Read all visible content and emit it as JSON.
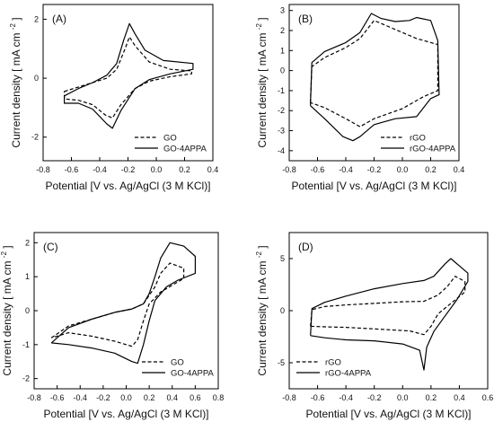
{
  "chart_data": [
    {
      "type": "line",
      "panel_label": "(A)",
      "xlabel": "Potential [V vs. Ag/AgCl (3 M KCl)]",
      "ylabel": "Current density [ mA cm",
      "ylabel_sup": "-2",
      "ylabel_end": "]",
      "xlim": [
        -0.8,
        0.4
      ],
      "ylim": [
        -2.8,
        2.5
      ],
      "xticks": [
        -0.8,
        -0.6,
        -0.4,
        -0.2,
        0.0,
        0.2,
        0.4
      ],
      "xtick_labels": [
        "-0.8",
        "-0.6",
        "-0.4",
        "-0.2",
        "0.0",
        "0.2",
        "0.4"
      ],
      "yticks": [
        -2,
        0,
        2
      ],
      "ytick_labels": [
        "-2",
        "0",
        "2"
      ],
      "legend_position": "bottom-right",
      "series": [
        {
          "name": "GO",
          "style": "dashed",
          "points": [
            [
              -0.65,
              -0.45
            ],
            [
              -0.55,
              -0.3
            ],
            [
              -0.45,
              -0.15
            ],
            [
              -0.35,
              0.0
            ],
            [
              -0.28,
              0.3
            ],
            [
              -0.22,
              1.0
            ],
            [
              -0.19,
              1.4
            ],
            [
              -0.15,
              1.1
            ],
            [
              -0.05,
              0.55
            ],
            [
              0.1,
              0.3
            ],
            [
              0.25,
              0.25
            ],
            [
              0.25,
              0.15
            ],
            [
              0.1,
              0.05
            ],
            [
              -0.05,
              -0.1
            ],
            [
              -0.15,
              -0.35
            ],
            [
              -0.25,
              -0.9
            ],
            [
              -0.31,
              -1.35
            ],
            [
              -0.36,
              -1.25
            ],
            [
              -0.45,
              -0.9
            ],
            [
              -0.55,
              -0.75
            ],
            [
              -0.65,
              -0.7
            ],
            [
              -0.65,
              -0.45
            ]
          ]
        },
        {
          "name": "GO-4APPA",
          "style": "solid",
          "points": [
            [
              -0.65,
              -0.6
            ],
            [
              -0.55,
              -0.35
            ],
            [
              -0.45,
              -0.15
            ],
            [
              -0.35,
              0.1
            ],
            [
              -0.28,
              0.5
            ],
            [
              -0.23,
              1.3
            ],
            [
              -0.19,
              1.85
            ],
            [
              -0.15,
              1.5
            ],
            [
              -0.08,
              0.95
            ],
            [
              0.05,
              0.6
            ],
            [
              0.26,
              0.5
            ],
            [
              0.26,
              0.3
            ],
            [
              0.1,
              0.15
            ],
            [
              -0.05,
              -0.05
            ],
            [
              -0.15,
              -0.35
            ],
            [
              -0.25,
              -1.1
            ],
            [
              -0.31,
              -1.7
            ],
            [
              -0.35,
              -1.55
            ],
            [
              -0.45,
              -1.05
            ],
            [
              -0.55,
              -0.85
            ],
            [
              -0.65,
              -0.85
            ],
            [
              -0.65,
              -0.6
            ]
          ]
        }
      ]
    },
    {
      "type": "line",
      "panel_label": "(B)",
      "xlabel": "Potential [V vs. Ag/AgCl (3 M KCl)]",
      "ylabel": "Current density [ mA cm",
      "ylabel_sup": "-2",
      "ylabel_end": "]",
      "xlim": [
        -0.8,
        0.4
      ],
      "ylim": [
        -4.5,
        3.3
      ],
      "xticks": [
        -0.8,
        -0.6,
        -0.4,
        -0.2,
        0.0,
        0.2,
        0.4
      ],
      "xtick_labels": [
        "-0.8",
        "-0.6",
        "-0.4",
        "-0.2",
        "0.0",
        "0.2",
        "0.4"
      ],
      "yticks": [
        -4,
        -3,
        -2,
        -1,
        0,
        1,
        2,
        3
      ],
      "ytick_labels": [
        "-4",
        "-3",
        "-2",
        "-1",
        "0",
        "1",
        "2",
        "3"
      ],
      "legend_position": "bottom-right",
      "series": [
        {
          "name": "rGO",
          "style": "dashed",
          "points": [
            [
              -0.65,
              -1.6
            ],
            [
              -0.64,
              0.2
            ],
            [
              -0.55,
              0.65
            ],
            [
              -0.4,
              1.15
            ],
            [
              -0.3,
              1.6
            ],
            [
              -0.2,
              2.5
            ],
            [
              -0.1,
              2.2
            ],
            [
              0.0,
              1.9
            ],
            [
              0.1,
              1.6
            ],
            [
              0.25,
              1.3
            ],
            [
              0.25,
              -1.0
            ],
            [
              0.15,
              -1.3
            ],
            [
              0.0,
              -1.9
            ],
            [
              -0.2,
              -2.4
            ],
            [
              -0.3,
              -2.8
            ],
            [
              -0.4,
              -2.4
            ],
            [
              -0.55,
              -1.85
            ],
            [
              -0.65,
              -1.6
            ]
          ]
        },
        {
          "name": "rGO-4APPA",
          "style": "solid",
          "points": [
            [
              -0.65,
              -1.75
            ],
            [
              -0.64,
              0.4
            ],
            [
              -0.55,
              0.95
            ],
            [
              -0.4,
              1.4
            ],
            [
              -0.3,
              1.9
            ],
            [
              -0.22,
              2.85
            ],
            [
              -0.15,
              2.6
            ],
            [
              -0.05,
              2.45
            ],
            [
              0.05,
              2.5
            ],
            [
              0.1,
              2.65
            ],
            [
              0.2,
              2.5
            ],
            [
              0.25,
              1.5
            ],
            [
              0.26,
              -1.2
            ],
            [
              0.2,
              -1.4
            ],
            [
              0.1,
              -2.3
            ],
            [
              -0.05,
              -2.4
            ],
            [
              -0.2,
              -2.7
            ],
            [
              -0.3,
              -3.3
            ],
            [
              -0.35,
              -3.5
            ],
            [
              -0.42,
              -3.3
            ],
            [
              -0.55,
              -2.4
            ],
            [
              -0.65,
              -1.75
            ]
          ]
        }
      ]
    },
    {
      "type": "line",
      "panel_label": "(C)",
      "xlabel": "Potential [V vs. Ag/AgCl (3 M KCl)]",
      "ylabel": "Current density [ mA cm",
      "ylabel_sup": "-2",
      "ylabel_end": "]",
      "xlim": [
        -0.8,
        0.8
      ],
      "ylim": [
        -2.3,
        2.3
      ],
      "xticks": [
        -0.8,
        -0.6,
        -0.4,
        -0.2,
        0.0,
        0.2,
        0.4,
        0.6,
        0.8
      ],
      "xtick_labels": [
        "-0.8",
        "-0.6",
        "-0.4",
        "-0.2",
        "0.0",
        "0.2",
        "0.4",
        "0.6",
        "0.8"
      ],
      "yticks": [
        -2,
        -1,
        0,
        1,
        2
      ],
      "ytick_labels": [
        "-2",
        "-1",
        "0",
        "1",
        "2"
      ],
      "legend_position": "bottom-right",
      "series": [
        {
          "name": "GO",
          "style": "dashed",
          "points": [
            [
              -0.65,
              -0.8
            ],
            [
              -0.5,
              -0.45
            ],
            [
              -0.3,
              -0.25
            ],
            [
              -0.1,
              -0.05
            ],
            [
              0.05,
              0.05
            ],
            [
              0.15,
              0.2
            ],
            [
              0.25,
              0.7
            ],
            [
              0.3,
              1.1
            ],
            [
              0.38,
              1.4
            ],
            [
              0.5,
              1.25
            ],
            [
              0.5,
              0.95
            ],
            [
              0.4,
              0.75
            ],
            [
              0.3,
              0.55
            ],
            [
              0.2,
              0.2
            ],
            [
              0.15,
              -0.3
            ],
            [
              0.1,
              -0.85
            ],
            [
              0.05,
              -1.05
            ],
            [
              -0.1,
              -0.9
            ],
            [
              -0.3,
              -0.75
            ],
            [
              -0.5,
              -0.65
            ],
            [
              -0.65,
              -0.8
            ]
          ]
        },
        {
          "name": "GO-4APPA",
          "style": "solid",
          "points": [
            [
              -0.65,
              -0.95
            ],
            [
              -0.5,
              -0.5
            ],
            [
              -0.3,
              -0.25
            ],
            [
              -0.1,
              -0.05
            ],
            [
              0.05,
              0.05
            ],
            [
              0.15,
              0.2
            ],
            [
              0.2,
              0.5
            ],
            [
              0.25,
              1.0
            ],
            [
              0.3,
              1.55
            ],
            [
              0.38,
              2.0
            ],
            [
              0.5,
              1.9
            ],
            [
              0.6,
              1.6
            ],
            [
              0.6,
              1.1
            ],
            [
              0.45,
              0.9
            ],
            [
              0.35,
              0.7
            ],
            [
              0.25,
              0.3
            ],
            [
              0.2,
              -0.3
            ],
            [
              0.15,
              -1.0
            ],
            [
              0.1,
              -1.55
            ],
            [
              0.05,
              -1.5
            ],
            [
              -0.1,
              -1.25
            ],
            [
              -0.3,
              -1.1
            ],
            [
              -0.5,
              -1.0
            ],
            [
              -0.65,
              -0.95
            ]
          ]
        }
      ]
    },
    {
      "type": "line",
      "panel_label": "(D)",
      "xlabel": "Potential [V vs. Ag/AgCl (3 M KCl)]",
      "ylabel": "Current density [ mA cm",
      "ylabel_sup": "-2",
      "ylabel_end": "]",
      "xlim": [
        -0.8,
        0.6
      ],
      "ylim": [
        -7.5,
        7.5
      ],
      "xticks": [
        -0.8,
        -0.6,
        -0.4,
        -0.2,
        0.0,
        0.2,
        0.4,
        0.6
      ],
      "xtick_labels": [
        "-0.8",
        "-0.6",
        "-0.4",
        "-0.2",
        "0.0",
        "0.2",
        "0.4",
        "0.6"
      ],
      "yticks": [
        -5,
        0,
        5
      ],
      "ytick_labels": [
        "-5",
        "0",
        "5"
      ],
      "legend_position": "bottom-left",
      "series": [
        {
          "name": "rGO",
          "style": "dashed",
          "points": [
            [
              -0.65,
              -1.5
            ],
            [
              -0.64,
              0.1
            ],
            [
              -0.55,
              0.4
            ],
            [
              -0.4,
              0.55
            ],
            [
              -0.2,
              0.7
            ],
            [
              0.0,
              0.85
            ],
            [
              0.15,
              0.9
            ],
            [
              0.25,
              1.5
            ],
            [
              0.32,
              2.4
            ],
            [
              0.37,
              3.3
            ],
            [
              0.44,
              2.8
            ],
            [
              0.44,
              1.8
            ],
            [
              0.35,
              0.8
            ],
            [
              0.25,
              -0.3
            ],
            [
              0.2,
              -1.5
            ],
            [
              0.15,
              -2.3
            ],
            [
              0.05,
              -1.95
            ],
            [
              -0.2,
              -1.75
            ],
            [
              -0.4,
              -1.6
            ],
            [
              -0.55,
              -1.55
            ],
            [
              -0.65,
              -1.5
            ]
          ]
        },
        {
          "name": "rGO-4APPA",
          "style": "solid",
          "points": [
            [
              -0.65,
              -2.4
            ],
            [
              -0.64,
              0.2
            ],
            [
              -0.55,
              0.8
            ],
            [
              -0.4,
              1.4
            ],
            [
              -0.2,
              2.1
            ],
            [
              0.0,
              2.6
            ],
            [
              0.15,
              2.9
            ],
            [
              0.22,
              3.3
            ],
            [
              0.3,
              4.5
            ],
            [
              0.34,
              5.0
            ],
            [
              0.4,
              4.3
            ],
            [
              0.46,
              3.6
            ],
            [
              0.46,
              2.8
            ],
            [
              0.38,
              1.0
            ],
            [
              0.3,
              -0.5
            ],
            [
              0.22,
              -2.0
            ],
            [
              0.17,
              -3.5
            ],
            [
              0.15,
              -5.7
            ],
            [
              0.12,
              -3.8
            ],
            [
              0.0,
              -3.2
            ],
            [
              -0.2,
              -2.9
            ],
            [
              -0.4,
              -2.8
            ],
            [
              -0.55,
              -2.6
            ],
            [
              -0.65,
              -2.4
            ]
          ]
        }
      ]
    }
  ]
}
